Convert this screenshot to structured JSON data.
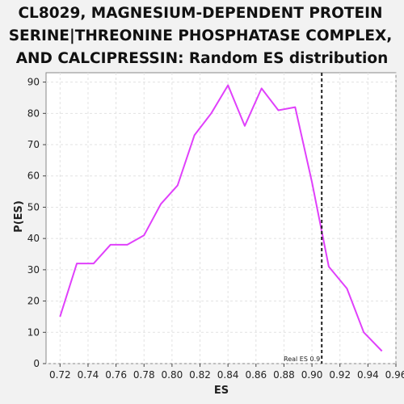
{
  "chart_data": {
    "type": "line",
    "title_lines": [
      "CL8029, MAGNESIUM-DEPENDENT PROTEIN",
      "SERINE|THREONINE PHOSPHATASE COMPLEX,",
      "AND CALCIPRESSIN: Random ES distribution"
    ],
    "xlabel": "ES",
    "ylabel": "P(ES)",
    "xlim": [
      0.71,
      0.96
    ],
    "ylim": [
      0,
      93
    ],
    "xticks": [
      0.72,
      0.74,
      0.76,
      0.78,
      0.8,
      0.82,
      0.84,
      0.86,
      0.88,
      0.9,
      0.92,
      0.94,
      0.96
    ],
    "xtick_labels": [
      "0.72",
      "0.74",
      "0.76",
      "0.78",
      "0.80",
      "0.82",
      "0.84",
      "0.86",
      "0.88",
      "0.90",
      "0.92",
      "0.94",
      "0.96"
    ],
    "yticks": [
      0,
      10,
      20,
      30,
      40,
      50,
      60,
      70,
      80,
      90
    ],
    "ytick_labels": [
      "0",
      "10",
      "20",
      "30",
      "40",
      "50",
      "60",
      "70",
      "80",
      "90"
    ],
    "grid": true,
    "series": [
      {
        "color": "#e040fb",
        "x": [
          0.72,
          0.732,
          0.744,
          0.756,
          0.768,
          0.78,
          0.792,
          0.804,
          0.816,
          0.828,
          0.84,
          0.852,
          0.864,
          0.876,
          0.888,
          0.9,
          0.912,
          0.925,
          0.937,
          0.95
        ],
        "y": [
          15,
          32,
          32,
          38,
          38,
          41,
          51,
          57,
          73,
          80,
          89,
          76,
          88,
          81,
          82,
          58,
          31,
          24,
          10,
          4
        ]
      }
    ],
    "vline": {
      "x": 0.907,
      "label": "Real ES 0.9",
      "color": "#222222"
    }
  }
}
